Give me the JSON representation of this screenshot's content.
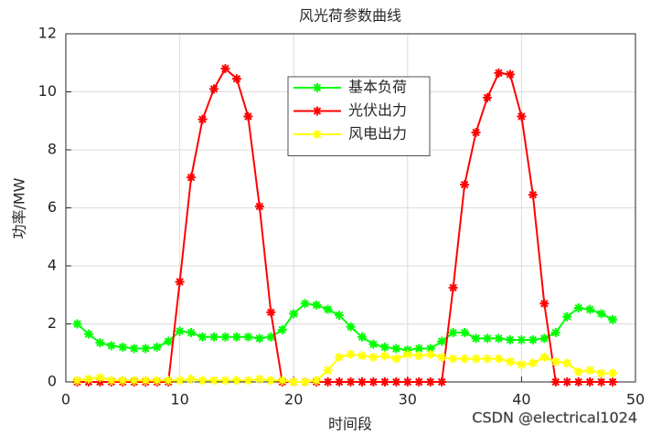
{
  "chart_data": {
    "type": "line",
    "title": "风光荷参数曲线",
    "xlabel": "时间段",
    "ylabel": "功率/MW",
    "x": [
      1,
      2,
      3,
      4,
      5,
      6,
      7,
      8,
      9,
      10,
      11,
      12,
      13,
      14,
      15,
      16,
      17,
      18,
      19,
      20,
      21,
      22,
      23,
      24,
      25,
      26,
      27,
      28,
      29,
      30,
      31,
      32,
      33,
      34,
      35,
      36,
      37,
      38,
      39,
      40,
      41,
      42,
      43,
      44,
      45,
      46,
      47,
      48
    ],
    "series": [
      {
        "name": "基本负荷",
        "color": "#00ff00",
        "values": [
          2.0,
          1.65,
          1.35,
          1.25,
          1.2,
          1.15,
          1.15,
          1.2,
          1.4,
          1.75,
          1.7,
          1.55,
          1.55,
          1.55,
          1.55,
          1.55,
          1.5,
          1.55,
          1.8,
          2.35,
          2.7,
          2.65,
          2.5,
          2.3,
          1.9,
          1.55,
          1.3,
          1.2,
          1.15,
          1.1,
          1.15,
          1.15,
          1.4,
          1.7,
          1.7,
          1.5,
          1.5,
          1.5,
          1.45,
          1.45,
          1.45,
          1.5,
          1.7,
          2.25,
          2.55,
          2.5,
          2.35,
          2.15
        ]
      },
      {
        "name": "光伏出力",
        "color": "#ff0000",
        "values": [
          0,
          0,
          0,
          0,
          0,
          0,
          0,
          0,
          0,
          3.45,
          7.05,
          9.05,
          10.1,
          10.8,
          10.45,
          9.15,
          6.05,
          2.4,
          0,
          0,
          0,
          0,
          0,
          0,
          0,
          0,
          0,
          0,
          0,
          0,
          0,
          0,
          0,
          3.25,
          6.8,
          8.6,
          9.8,
          10.65,
          10.6,
          9.15,
          6.45,
          2.7,
          0,
          0,
          0,
          0,
          0,
          0
        ]
      },
      {
        "name": "风电出力",
        "color": "#ffff00",
        "values": [
          0.05,
          0.1,
          0.15,
          0.05,
          0.05,
          0.05,
          0.05,
          0.05,
          0.05,
          0.05,
          0.1,
          0.05,
          0.05,
          0.05,
          0.05,
          0.05,
          0.1,
          0.05,
          0.05,
          0,
          0,
          0.05,
          0.4,
          0.85,
          0.95,
          0.9,
          0.85,
          0.9,
          0.8,
          0.95,
          0.9,
          0.95,
          0.85,
          0.8,
          0.8,
          0.8,
          0.8,
          0.8,
          0.7,
          0.6,
          0.65,
          0.85,
          0.7,
          0.65,
          0.35,
          0.4,
          0.3,
          0.3
        ]
      }
    ],
    "xlim": [
      0,
      50
    ],
    "xticks": [
      0,
      10,
      20,
      30,
      40,
      50
    ],
    "ylim": [
      0,
      12
    ],
    "yticks": [
      0,
      2,
      4,
      6,
      8,
      10,
      12
    ],
    "grid": true,
    "legend": "upper center",
    "marker": "asterisk"
  },
  "watermark": "CSDN @electrical1024"
}
